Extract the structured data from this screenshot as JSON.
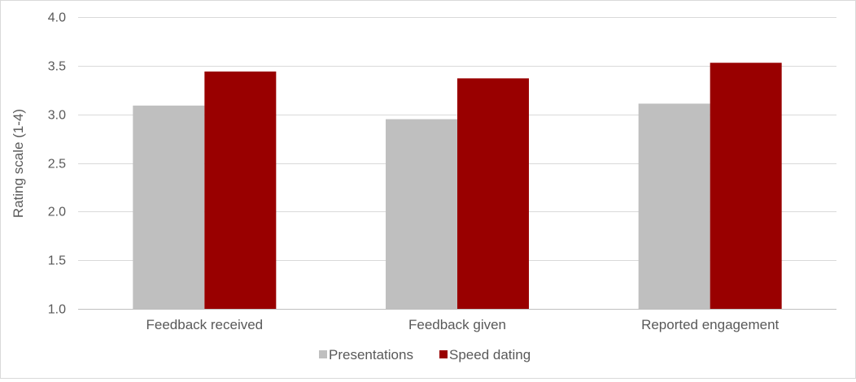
{
  "chart_data": {
    "type": "bar",
    "categories": [
      "Feedback received",
      "Feedback given",
      "Reported engagement"
    ],
    "series": [
      {
        "name": "Presentations",
        "values": [
          3.09,
          2.95,
          3.11
        ],
        "color": "#bfbfbf"
      },
      {
        "name": "Speed dating",
        "values": [
          3.44,
          3.37,
          3.53
        ],
        "color": "#990000"
      }
    ],
    "title": "",
    "xlabel": "",
    "ylabel": "Rating scale (1-4)",
    "ylim": [
      1.0,
      4.0
    ],
    "yticks": [
      "1.0",
      "1.5",
      "2.0",
      "2.5",
      "3.0",
      "3.5",
      "4.0"
    ],
    "grid": true,
    "legend_position": "bottom"
  }
}
